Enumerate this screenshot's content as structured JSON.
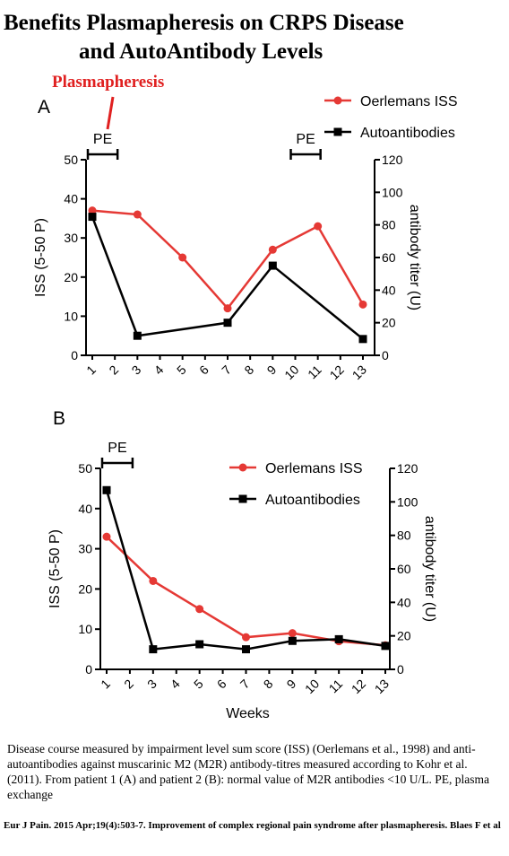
{
  "title_line1": "Benefits Plasmapheresis on CRPS Disease",
  "title_line2": "and AutoAntibody Levels",
  "plasmapheresis_label": "Plasmapheresis",
  "caption": "Disease course measured by impairment level sum score (ISS) (Oerlemans et al., 1998) and anti-autoantibodies against muscarinic M2 (M2R) antibody-titres measured according to Kohr et al. (2011). From patient 1 (A) and patient 2 (B): normal value of M2R antibodies <10 U/L. PE, plasma exchange",
  "citation": "Eur J Pain. 2015 Apr;19(4):503-7. Improvement of complex regional pain syndrome after plasmapheresis. Blaes F et al",
  "colors": {
    "iss": "#e53935",
    "autoantibodies": "#000000",
    "title_highlight": "#e02020"
  },
  "chart_data": [
    {
      "type": "line",
      "panel": "A",
      "x_ticks": [
        "1",
        "2",
        "3",
        "4",
        "5",
        "6",
        "7",
        "8",
        "9",
        "10",
        "11",
        "12",
        "13"
      ],
      "xlabel": "",
      "ylabel_left": "ISS (5-50 P)",
      "ylabel_right": "antibody titer (U)",
      "ylim_left": [
        0,
        50
      ],
      "yticks_left": [
        "0",
        "10",
        "20",
        "30",
        "40",
        "50"
      ],
      "ylim_right": [
        0,
        120
      ],
      "yticks_right": [
        "0",
        "20",
        "40",
        "60",
        "80",
        "100",
        "120"
      ],
      "legend": "top-right",
      "pe_periods": [
        {
          "label": "PE",
          "start": 1,
          "end": 2
        },
        {
          "label": "PE",
          "start": 10,
          "end": 11
        }
      ],
      "series": [
        {
          "name": "Oerlemans ISS",
          "axis": "left",
          "marker": "circle",
          "x": [
            1,
            3,
            5,
            7,
            9,
            11,
            13
          ],
          "y": [
            37,
            36,
            25,
            12,
            27,
            33,
            13
          ]
        },
        {
          "name": "Autoantibodies",
          "axis": "right",
          "marker": "square",
          "x": [
            1,
            3,
            7,
            9,
            13
          ],
          "y": [
            85,
            12,
            20,
            55,
            10
          ]
        }
      ]
    },
    {
      "type": "line",
      "panel": "B",
      "x_ticks": [
        "1",
        "2",
        "3",
        "4",
        "5",
        "6",
        "7",
        "8",
        "9",
        "10",
        "11",
        "12",
        "13"
      ],
      "xlabel": "Weeks",
      "ylabel_left": "ISS (5-50 P)",
      "ylabel_right": "antibody titer (U)",
      "ylim_left": [
        0,
        50
      ],
      "yticks_left": [
        "0",
        "10",
        "20",
        "30",
        "40",
        "50"
      ],
      "ylim_right": [
        0,
        120
      ],
      "yticks_right": [
        "0",
        "20",
        "40",
        "60",
        "80",
        "100",
        "120"
      ],
      "legend": "top-right",
      "pe_periods": [
        {
          "label": "PE",
          "start": 1,
          "end": 2
        }
      ],
      "series": [
        {
          "name": "Oerlemans ISS",
          "axis": "left",
          "marker": "circle",
          "x": [
            1,
            3,
            5,
            7,
            9,
            11,
            13
          ],
          "y": [
            33,
            22,
            15,
            8,
            9,
            7,
            6
          ]
        },
        {
          "name": "Autoantibodies",
          "axis": "right",
          "marker": "square",
          "x": [
            1,
            3,
            5,
            7,
            9,
            11,
            13
          ],
          "y": [
            107,
            12,
            15,
            12,
            17,
            18,
            14
          ]
        }
      ]
    }
  ]
}
